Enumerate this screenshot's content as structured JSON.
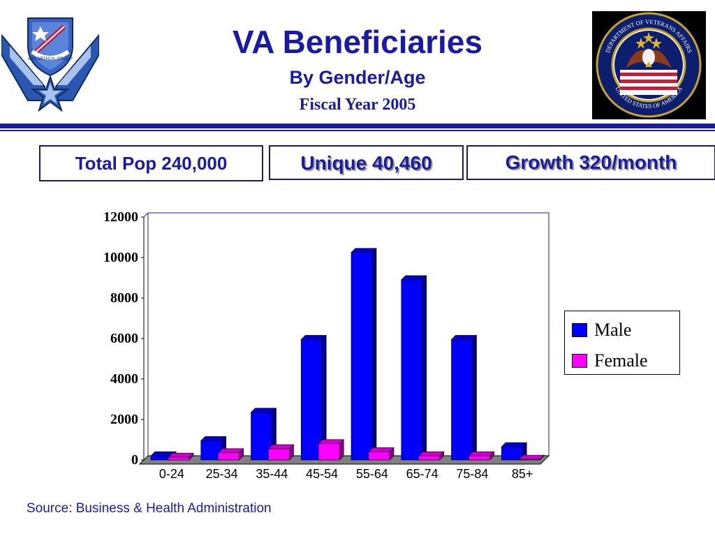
{
  "header": {
    "title": "VA Beneficiaries",
    "subtitle": "By Gender/Age",
    "fiscal_year": "Fiscal Year 2005",
    "left_emblem_icon": "air-force-wings-shield-icon",
    "left_emblem_text": "89th MEDICAL GROUP",
    "right_seal_icon": "veterans-affairs-seal-icon",
    "right_seal_text": "DEPARTMENT OF VETERANS AFFAIRS · UNITED STATES OF AMERICA"
  },
  "stats": {
    "total_pop": "Total Pop 240,000",
    "unique": "Unique 40,460",
    "growth": "Growth 320/month"
  },
  "footer": {
    "source": "Source:  Business & Health Administration"
  },
  "colors": {
    "accent": "#1a1aa6",
    "male": "#0000ff",
    "female": "#ff00ff"
  },
  "chart_data": {
    "type": "bar",
    "categories": [
      "0-24",
      "25-34",
      "35-44",
      "45-54",
      "55-64",
      "65-74",
      "75-84",
      "85+"
    ],
    "series": [
      {
        "name": "Male",
        "values": [
          200,
          950,
          2350,
          5950,
          10250,
          8900,
          5950,
          650
        ]
      },
      {
        "name": "Female",
        "values": [
          130,
          350,
          550,
          800,
          400,
          200,
          200,
          30
        ]
      }
    ],
    "yticks": [
      "0",
      "2000",
      "4000",
      "6000",
      "8000",
      "10000",
      "12000"
    ],
    "ylim": [
      0,
      12000
    ],
    "legend_position": "right",
    "grid": false,
    "style": "3d-bars"
  }
}
